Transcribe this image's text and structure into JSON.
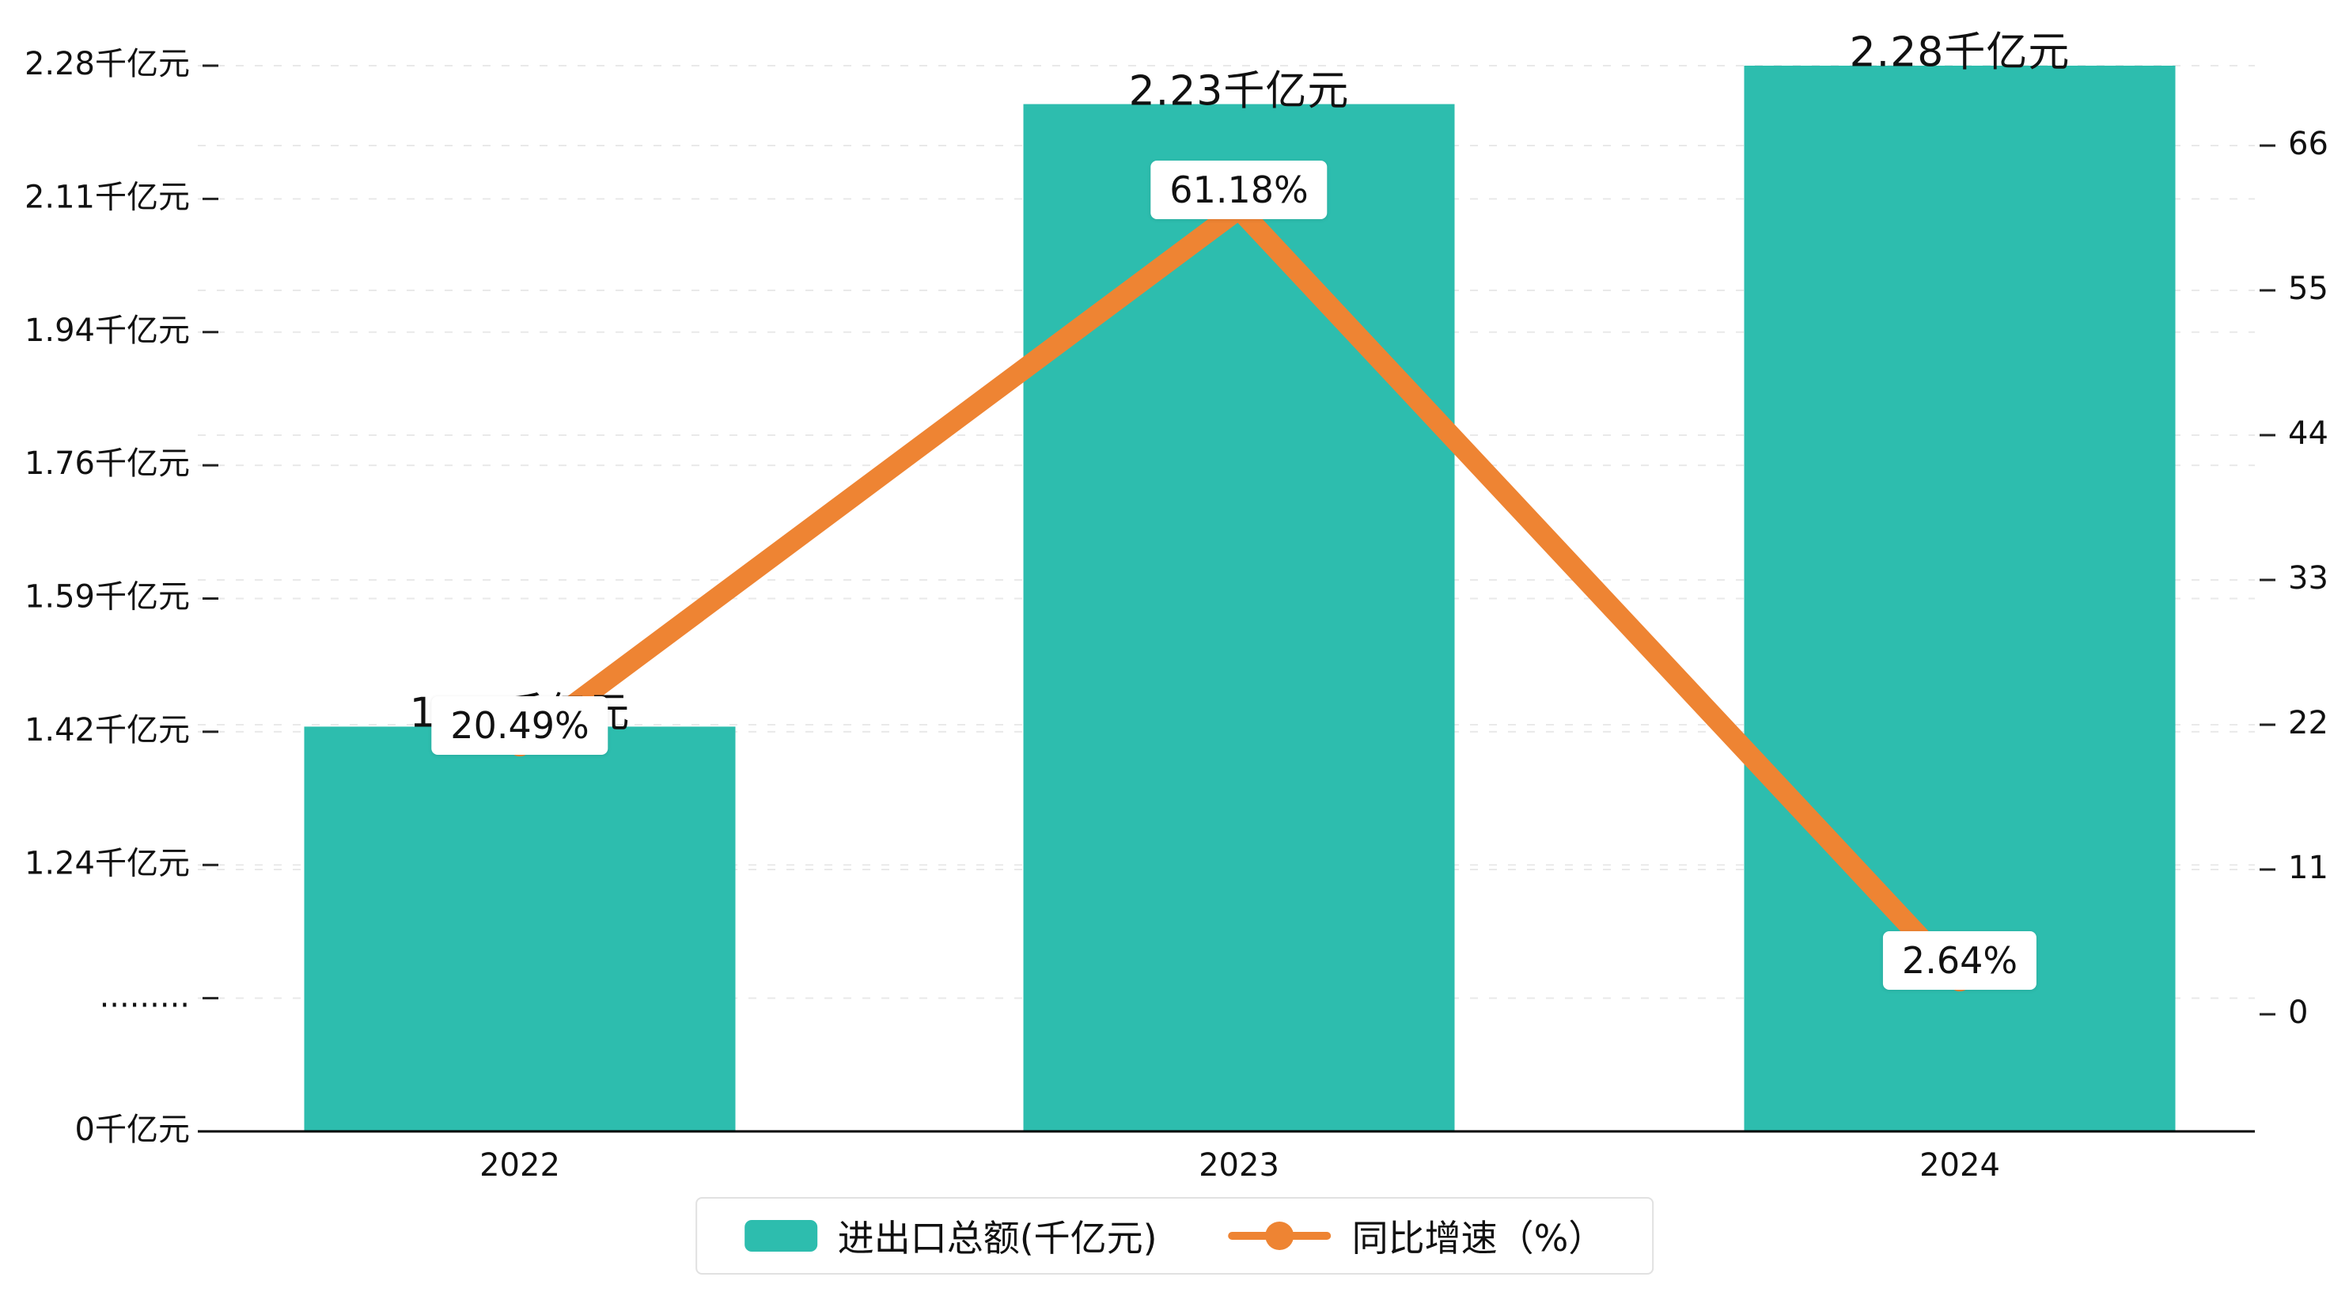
{
  "chart_data": {
    "type": "bar+line",
    "categories": [
      "2022",
      "2023",
      "2024"
    ],
    "series": [
      {
        "name": "进出口总额(千亿元)",
        "type": "bar",
        "values": [
          1.42,
          2.23,
          2.28
        ],
        "labels": [
          "1.42千亿元",
          "2.23千亿元",
          "2.28千亿元"
        ],
        "color": "#2dbdae"
      },
      {
        "name": "同比增速（%）",
        "type": "line",
        "values": [
          20.49,
          61.18,
          2.64
        ],
        "labels": [
          "20.49%",
          "61.18%",
          "2.64%"
        ],
        "color": "#ee8433"
      }
    ],
    "left_axis": {
      "tick_labels": [
        "0千亿元",
        ".........",
        "1.24千亿元",
        "1.42千亿元",
        "1.59千亿元",
        "1.76千亿元",
        "1.94千亿元",
        "2.11千亿元",
        "2.28千亿元"
      ],
      "tick_values": [
        0,
        null,
        1.24,
        1.42,
        1.59,
        1.76,
        1.94,
        2.11,
        2.28
      ],
      "value_range_linear": [
        1.24,
        2.28
      ]
    },
    "right_axis": {
      "tick_labels": [
        "0",
        "11",
        "22",
        "33",
        "44",
        "55",
        "66"
      ],
      "tick_values": [
        0,
        11,
        22,
        33,
        44,
        55,
        66
      ],
      "range": [
        0,
        66
      ]
    },
    "grid": true,
    "legend_position": "bottom-center"
  },
  "legend": {
    "bar_label": "进出口总额(千亿元)",
    "line_label": "同比增速（%）"
  },
  "colors": {
    "bar": "#2dbdae",
    "line": "#ee8433",
    "axis": "#000000",
    "gridline": "#e9e9e9",
    "text": "#111111",
    "background": "#ffffff"
  }
}
